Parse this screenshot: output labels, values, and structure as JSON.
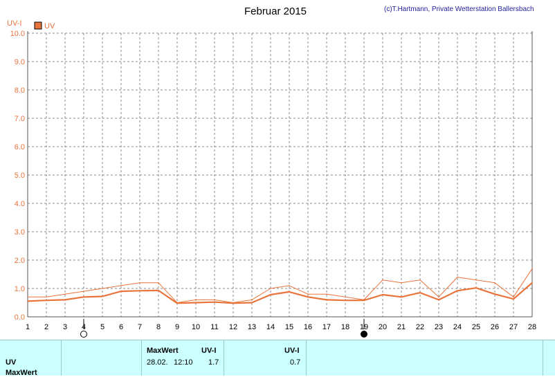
{
  "title": "Februar 2015",
  "credit": "(c)T.Hartmann, Private Wetterstation Ballersbach",
  "chart_data": {
    "type": "line",
    "ylabel": "UV-I",
    "ylim": [
      0,
      10
    ],
    "yticks": [
      "0.0",
      "1.0",
      "2.0",
      "3.0",
      "4.0",
      "5.0",
      "6.0",
      "7.0",
      "8.0",
      "9.0",
      "10.0"
    ],
    "x": [
      1,
      2,
      3,
      4,
      5,
      6,
      7,
      8,
      9,
      10,
      11,
      12,
      13,
      14,
      15,
      16,
      17,
      18,
      19,
      20,
      21,
      22,
      23,
      24,
      25,
      26,
      27,
      28
    ],
    "grid": true,
    "legend": "top-left",
    "series": [
      {
        "name": "UV",
        "color": "#e8743b",
        "values": [
          0.7,
          0.7,
          0.8,
          0.9,
          1.0,
          1.1,
          1.2,
          1.2,
          0.5,
          0.6,
          0.6,
          0.5,
          0.6,
          1.0,
          1.1,
          0.8,
          0.8,
          0.7,
          0.6,
          1.3,
          1.2,
          1.3,
          0.7,
          1.4,
          1.3,
          1.2,
          0.7,
          1.7
        ]
      },
      {
        "color": "#e8743b",
        "values": [
          0.55,
          0.58,
          0.6,
          0.7,
          0.72,
          0.9,
          0.92,
          0.93,
          0.48,
          0.5,
          0.52,
          0.48,
          0.5,
          0.78,
          0.88,
          0.7,
          0.6,
          0.58,
          0.58,
          0.78,
          0.7,
          0.85,
          0.6,
          0.92,
          1.02,
          0.8,
          0.63,
          1.2
        ]
      }
    ],
    "moon_phases": [
      {
        "day": 4,
        "phase": "full-moon-icon"
      },
      {
        "day": 19,
        "phase": "new-moon-icon"
      }
    ]
  },
  "footer": {
    "row1_label": "UV",
    "row2_label": "MaxWert",
    "maxwert_header": "MaxWert",
    "uvi_header": "UV-I",
    "uvi_header2": "UV-I",
    "max_date": "28.02.",
    "max_time": "12:10",
    "max_value": "1.7",
    "avg_value": "0.7"
  }
}
